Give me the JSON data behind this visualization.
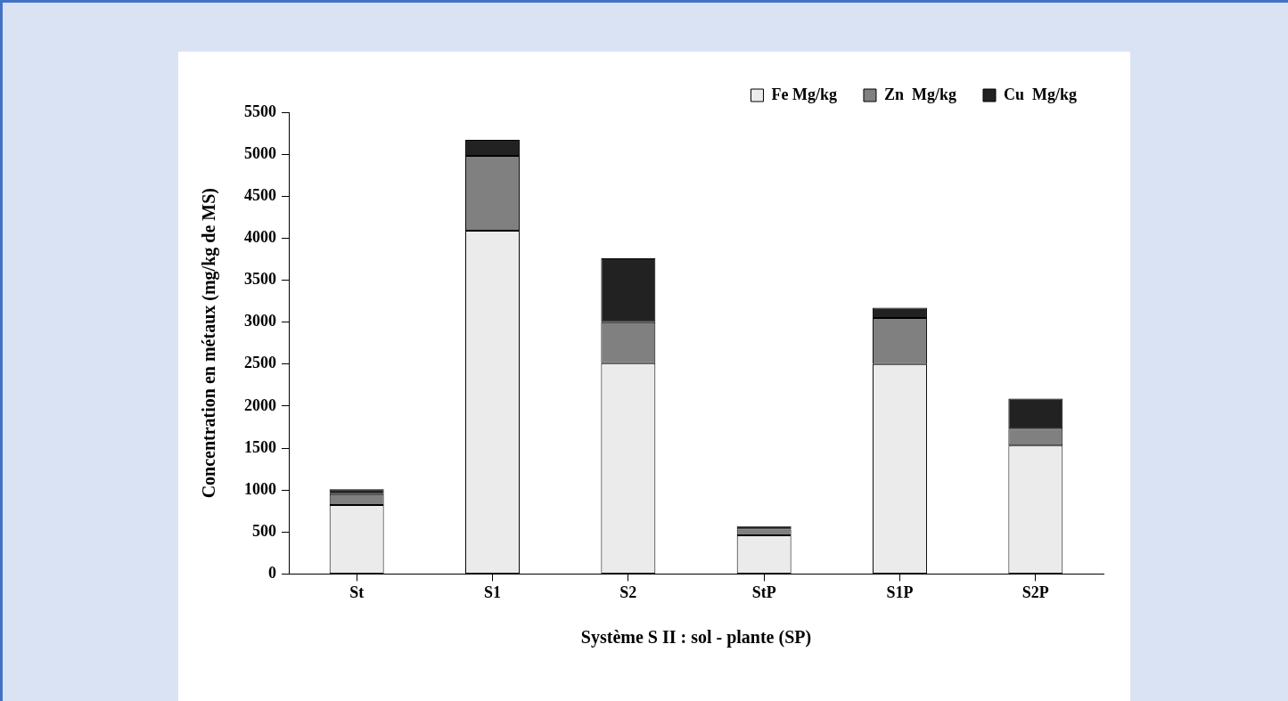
{
  "chart_data": {
    "type": "bar",
    "stacked": true,
    "xlabel": "Système S II : sol - plante (SP)",
    "ylabel": "Concentration en métaux (mg/kg de MS)",
    "categories": [
      "St",
      "S1",
      "S2",
      "StP",
      "S1P",
      "S2P"
    ],
    "series": [
      {
        "name": "Fe Mg/kg",
        "color": "#ebebeb",
        "values": [
          820,
          4090,
          2510,
          460,
          2500,
          1530
        ]
      },
      {
        "name": "Zn  Mg/kg",
        "color": "#808080",
        "values": [
          130,
          890,
          490,
          70,
          550,
          200
        ]
      },
      {
        "name": "Cu  Mg/kg",
        "color": "#222222",
        "values": [
          60,
          190,
          760,
          40,
          120,
          360
        ]
      }
    ],
    "ylim": [
      0,
      5500
    ],
    "yticks": [
      0,
      500,
      1000,
      1500,
      2000,
      2500,
      3000,
      3500,
      4000,
      4500,
      5000,
      5500
    ],
    "grid": false,
    "legend": "top right"
  }
}
